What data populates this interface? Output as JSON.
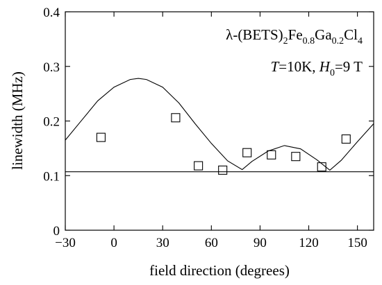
{
  "chart_data": {
    "type": "scatter",
    "xlabel": "field direction (degrees)",
    "ylabel": "linewidth (MHz)",
    "xlim": [
      -30,
      160
    ],
    "ylim": [
      0,
      0.4
    ],
    "xticks": [
      -30,
      0,
      30,
      60,
      90,
      120,
      150
    ],
    "xtick_labels": [
      "−30",
      "0",
      "30",
      "60",
      "90",
      "120",
      "150"
    ],
    "yticks": [
      0,
      0.1,
      0.2,
      0.3,
      0.4
    ],
    "ytick_labels": [
      "0",
      "0.1",
      "0.2",
      "0.3",
      "0.4"
    ],
    "grid": false,
    "annotation": {
      "compound": {
        "prefix": "λ-(BETS)",
        "sub1": "2",
        "fe": "Fe",
        "sub2": "0.8",
        "ga": "Ga",
        "sub3": "0.2",
        "cl": "Cl",
        "sub4": "4"
      },
      "conditions": {
        "t_sym": "T",
        "t_val": "=10K, ",
        "h_sym": "H",
        "h_sub": "0",
        "h_val": "=9 T"
      }
    },
    "series": [
      {
        "kind": "points",
        "marker": "open-square",
        "x": [
          -8,
          38,
          52,
          67,
          82,
          97,
          112,
          128,
          143
        ],
        "y": [
          0.17,
          0.206,
          0.118,
          0.11,
          0.142,
          0.138,
          0.135,
          0.116,
          0.167
        ]
      },
      {
        "kind": "line",
        "x": [
          -30,
          -20,
          -10,
          0,
          10,
          15,
          20,
          30,
          40,
          50,
          60,
          70,
          79,
          85,
          95,
          105,
          115,
          125,
          133,
          140,
          150,
          160
        ],
        "y": [
          0.165,
          0.201,
          0.237,
          0.262,
          0.276,
          0.278,
          0.276,
          0.262,
          0.233,
          0.195,
          0.159,
          0.127,
          0.111,
          0.126,
          0.145,
          0.155,
          0.149,
          0.129,
          0.11,
          0.128,
          0.162,
          0.195
        ]
      },
      {
        "kind": "line",
        "x": [
          -30,
          160
        ],
        "y": [
          0.107,
          0.107
        ]
      }
    ]
  }
}
